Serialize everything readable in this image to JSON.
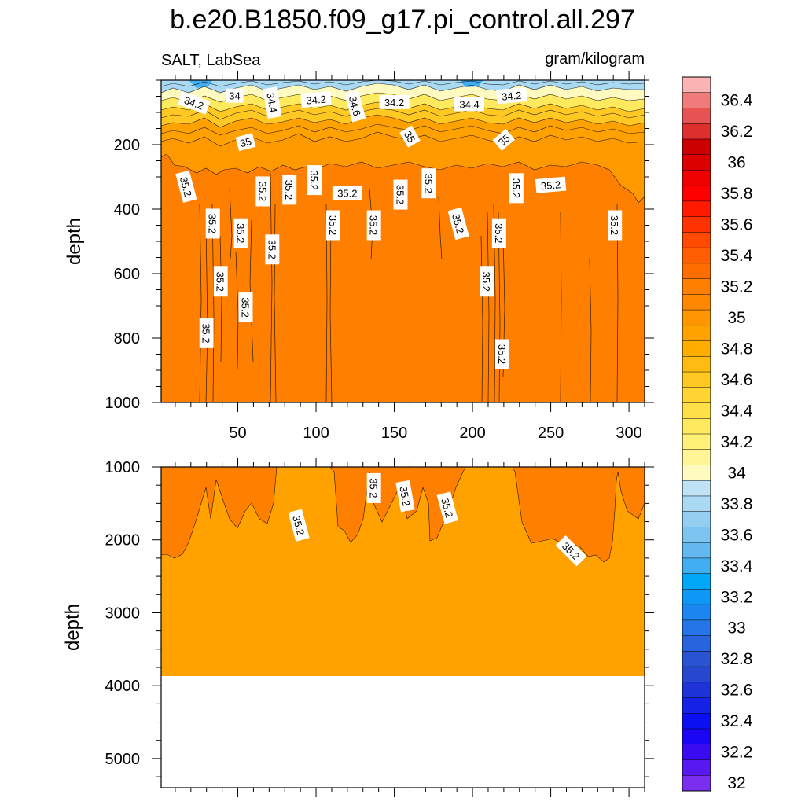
{
  "chart_data": [
    {
      "type": "heatmap",
      "panel": "upper",
      "title": "b.e20.B1850.f09_g17.pi_control.all.297",
      "left_subtitle": "SALT, LabSea",
      "right_subtitle": "gram/kilogram",
      "xlabel": "",
      "ylabel": "depth",
      "xlim": [
        1,
        310
      ],
      "ylim": [
        1000,
        0
      ],
      "x_ticks": [
        "50",
        "100",
        "150",
        "200",
        "250",
        "300"
      ],
      "x_tick_values": [
        50,
        100,
        150,
        200,
        250,
        300
      ],
      "y_ticks": [
        "200",
        "400",
        "600",
        "800",
        "1000"
      ],
      "y_tick_values": [
        200,
        400,
        600,
        800,
        1000
      ],
      "contour_labels": [
        {
          "text": "34.2",
          "x": 22,
          "y": 70,
          "angle": 20
        },
        {
          "text": "34",
          "x": 48,
          "y": 48,
          "angle": 0
        },
        {
          "text": "34.4",
          "x": 72,
          "y": 70,
          "angle": 80
        },
        {
          "text": "34.2",
          "x": 100,
          "y": 60,
          "angle": -5
        },
        {
          "text": "34.6",
          "x": 125,
          "y": 80,
          "angle": 75
        },
        {
          "text": "34.2",
          "x": 150,
          "y": 68,
          "angle": 0
        },
        {
          "text": "34.4",
          "x": 198,
          "y": 74,
          "angle": 0
        },
        {
          "text": "34.2",
          "x": 225,
          "y": 48,
          "angle": -5
        },
        {
          "text": "35",
          "x": 55,
          "y": 192,
          "angle": -15
        },
        {
          "text": "35",
          "x": 160,
          "y": 175,
          "angle": 60
        },
        {
          "text": "35",
          "x": 220,
          "y": 185,
          "angle": -40
        },
        {
          "text": "35.2",
          "x": 17,
          "y": 330,
          "angle": 75
        },
        {
          "text": "35.2",
          "x": 66,
          "y": 345,
          "angle": 90
        },
        {
          "text": "35.2",
          "x": 83,
          "y": 340,
          "angle": 90
        },
        {
          "text": "35.2",
          "x": 99,
          "y": 310,
          "angle": 90
        },
        {
          "text": "35.2",
          "x": 120,
          "y": 350,
          "angle": 0
        },
        {
          "text": "35.2",
          "x": 154,
          "y": 355,
          "angle": 90
        },
        {
          "text": "35.2",
          "x": 172,
          "y": 320,
          "angle": 90
        },
        {
          "text": "35.2",
          "x": 228,
          "y": 335,
          "angle": 90
        },
        {
          "text": "35.2",
          "x": 250,
          "y": 325,
          "angle": -5
        },
        {
          "text": "35.2",
          "x": 34,
          "y": 445,
          "angle": 90
        },
        {
          "text": "35.2",
          "x": 52,
          "y": 475,
          "angle": 90
        },
        {
          "text": "35.2",
          "x": 111,
          "y": 450,
          "angle": 90
        },
        {
          "text": "35.2",
          "x": 137,
          "y": 450,
          "angle": 90
        },
        {
          "text": "35.2",
          "x": 191,
          "y": 445,
          "angle": 75
        },
        {
          "text": "35.2",
          "x": 217,
          "y": 475,
          "angle": 90
        },
        {
          "text": "35.2",
          "x": 291,
          "y": 450,
          "angle": 90
        },
        {
          "text": "35.2",
          "x": 72,
          "y": 525,
          "angle": 90
        },
        {
          "text": "35.2",
          "x": 39,
          "y": 625,
          "angle": 90
        },
        {
          "text": "35.2",
          "x": 55,
          "y": 705,
          "angle": 90
        },
        {
          "text": "35.2",
          "x": 209,
          "y": 625,
          "angle": 90
        },
        {
          "text": "35.2",
          "x": 30,
          "y": 785,
          "angle": 90
        },
        {
          "text": "35.2",
          "x": 219,
          "y": 850,
          "angle": 90
        }
      ]
    },
    {
      "type": "heatmap",
      "panel": "lower",
      "xlabel": "",
      "ylabel": "depth",
      "xlim": [
        1,
        310
      ],
      "ylim": [
        5400,
        1000
      ],
      "y_ticks": [
        "1000",
        "2000",
        "3000",
        "4000",
        "5000"
      ],
      "y_tick_values": [
        1000,
        2000,
        3000,
        4000,
        5000
      ],
      "sea_floor_depth": 3870,
      "contour_labels": [
        {
          "text": "35.2",
          "x": 89,
          "y": 1800,
          "angle": 75
        },
        {
          "text": "35.2",
          "x": 137,
          "y": 1290,
          "angle": 90
        },
        {
          "text": "35.2",
          "x": 157,
          "y": 1400,
          "angle": 80
        },
        {
          "text": "35.2",
          "x": 184,
          "y": 1560,
          "angle": 75
        },
        {
          "text": "35.2",
          "x": 263,
          "y": 2150,
          "angle": 45
        }
      ]
    }
  ],
  "colorbar": {
    "labels": [
      "36.4",
      "36.2",
      "36",
      "35.8",
      "35.6",
      "35.4",
      "35.2",
      "35",
      "34.8",
      "34.6",
      "34.4",
      "34.2",
      "34",
      "33.8",
      "33.6",
      "33.4",
      "33.2",
      "33",
      "32.8",
      "32.6",
      "32.4",
      "32.2",
      "32"
    ],
    "colors": [
      "#fbb3b3",
      "#f07b7b",
      "#e55353",
      "#de2f2f",
      "#cc0000",
      "#dd0000",
      "#ee0000",
      "#ff0000",
      "#ff1a00",
      "#ff3300",
      "#ff4a00",
      "#ff5f00",
      "#ff6e00",
      "#ff7f00",
      "#ff8800",
      "#ff9500",
      "#ffa200",
      "#ffad00",
      "#ffbb11",
      "#ffc822",
      "#ffd433",
      "#ffe048",
      "#ffe95e",
      "#fff077",
      "#fff596",
      "#fffac0",
      "#bfe3f5",
      "#a9d9f3",
      "#94cff2",
      "#7dc4f0",
      "#63b9ef",
      "#40aef0",
      "#00a7f7",
      "#0e97f5",
      "#1b85f0",
      "#2575e8",
      "#2864dd",
      "#2a54d2",
      "#2747ce",
      "#1e34d8",
      "#1423e6",
      "#0a10f2",
      "#1a05f5",
      "#3a0bf0",
      "#561af0",
      "#7a2ef0"
    ]
  }
}
